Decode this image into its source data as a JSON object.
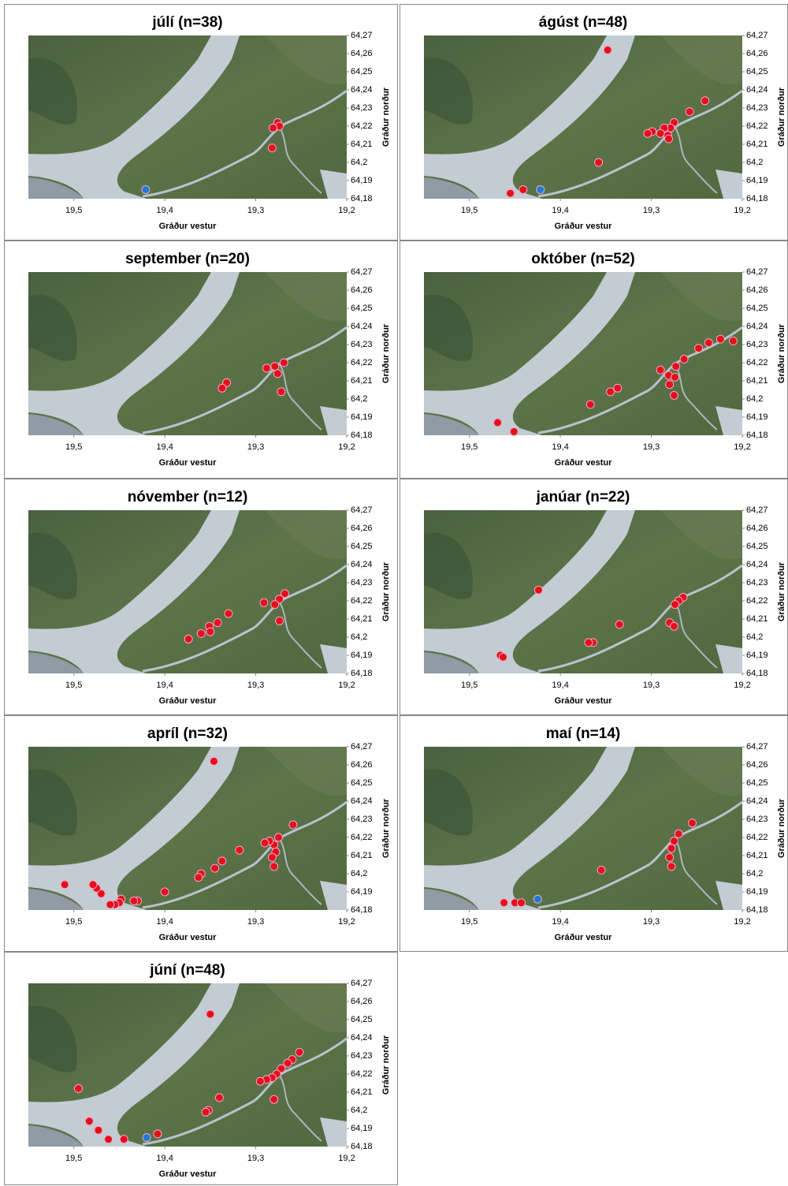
{
  "chart_data": [
    {
      "type": "scatter",
      "title": "júlí (n=38)",
      "xlabel": "Gráður vestur",
      "ylabel": "Gráður norður",
      "xlim": [
        19.55,
        19.2
      ],
      "ylim": [
        64.18,
        64.27
      ],
      "xticks": [
        {
          "value": 19.5,
          "label": "19,5"
        },
        {
          "value": 19.4,
          "label": "19,4"
        },
        {
          "value": 19.3,
          "label": "19,3"
        },
        {
          "value": 19.2,
          "label": "19,2"
        }
      ],
      "yticks": [
        {
          "value": 64.27,
          "label": "64,27"
        },
        {
          "value": 64.26,
          "label": "64,26"
        },
        {
          "value": 64.25,
          "label": "64,25"
        },
        {
          "value": 64.24,
          "label": "64,24"
        },
        {
          "value": 64.23,
          "label": "64,23"
        },
        {
          "value": 64.22,
          "label": "64,22"
        },
        {
          "value": 64.21,
          "label": "64,21"
        },
        {
          "value": 64.2,
          "label": "64,2"
        },
        {
          "value": 64.19,
          "label": "64,19"
        },
        {
          "value": 64.18,
          "label": "64,18"
        }
      ],
      "series": [
        {
          "color": "#e3101b",
          "x": [
            19.276,
            19.274,
            19.281,
            19.282
          ],
          "y": [
            64.222,
            64.22,
            64.219,
            64.208
          ]
        },
        {
          "color": "#1f7ad4",
          "x": [
            19.421
          ],
          "y": [
            64.185
          ]
        }
      ]
    },
    {
      "type": "scatter",
      "title": "ágúst (n=48)",
      "xlabel": "Gráður vestur",
      "ylabel": "Gráður norður",
      "xlim": [
        19.55,
        19.2
      ],
      "ylim": [
        64.18,
        64.27
      ],
      "xticks": [
        {
          "value": 19.5,
          "label": "19,5"
        },
        {
          "value": 19.4,
          "label": "19,4"
        },
        {
          "value": 19.3,
          "label": "19,3"
        },
        {
          "value": 19.2,
          "label": "19,2"
        }
      ],
      "yticks": [
        {
          "value": 64.27,
          "label": "64,27"
        },
        {
          "value": 64.26,
          "label": "64,26"
        },
        {
          "value": 64.25,
          "label": "64,25"
        },
        {
          "value": 64.24,
          "label": "64,24"
        },
        {
          "value": 64.23,
          "label": "64,23"
        },
        {
          "value": 64.22,
          "label": "64,22"
        },
        {
          "value": 64.21,
          "label": "64,21"
        },
        {
          "value": 64.2,
          "label": "64,2"
        },
        {
          "value": 64.19,
          "label": "64,19"
        },
        {
          "value": 64.18,
          "label": "64,18"
        }
      ],
      "series": [
        {
          "color": "#e3101b",
          "x": [
            19.348,
            19.241,
            19.258,
            19.275,
            19.279,
            19.282,
            19.281,
            19.286,
            19.29,
            19.299,
            19.304,
            19.358,
            19.455,
            19.441
          ],
          "y": [
            64.262,
            64.234,
            64.228,
            64.222,
            64.219,
            64.215,
            64.213,
            64.219,
            64.216,
            64.217,
            64.216,
            64.2,
            64.183,
            64.185
          ]
        },
        {
          "color": "#1f7ad4",
          "x": [
            19.422
          ],
          "y": [
            64.185
          ]
        }
      ]
    },
    {
      "type": "scatter",
      "title": "september (n=20)",
      "xlabel": "Gráður vestur",
      "ylabel": "Gráður norður",
      "xlim": [
        19.55,
        19.2
      ],
      "ylim": [
        64.18,
        64.27
      ],
      "xticks": [
        {
          "value": 19.5,
          "label": "19,5"
        },
        {
          "value": 19.4,
          "label": "19,4"
        },
        {
          "value": 19.3,
          "label": "19,3"
        },
        {
          "value": 19.2,
          "label": "19,2"
        }
      ],
      "yticks": [
        {
          "value": 64.27,
          "label": "64,27"
        },
        {
          "value": 64.26,
          "label": "64,26"
        },
        {
          "value": 64.25,
          "label": "64,25"
        },
        {
          "value": 64.24,
          "label": "64,24"
        },
        {
          "value": 64.23,
          "label": "64,23"
        },
        {
          "value": 64.22,
          "label": "64,22"
        },
        {
          "value": 64.21,
          "label": "64,21"
        },
        {
          "value": 64.2,
          "label": "64,2"
        },
        {
          "value": 64.19,
          "label": "64,19"
        },
        {
          "value": 64.18,
          "label": "64,18"
        }
      ],
      "series": [
        {
          "color": "#e3101b",
          "x": [
            19.269,
            19.279,
            19.288,
            19.276,
            19.332,
            19.337,
            19.272
          ],
          "y": [
            64.22,
            64.218,
            64.217,
            64.214,
            64.209,
            64.206,
            64.204
          ]
        }
      ]
    },
    {
      "type": "scatter",
      "title": "október (n=52)",
      "xlabel": "Gráður vestur",
      "ylabel": "Gráður norður",
      "xlim": [
        19.55,
        19.2
      ],
      "ylim": [
        64.18,
        64.27
      ],
      "xticks": [
        {
          "value": 19.5,
          "label": "19,5"
        },
        {
          "value": 19.4,
          "label": "19,4"
        },
        {
          "value": 19.3,
          "label": "19,3"
        },
        {
          "value": 19.2,
          "label": "19,2"
        }
      ],
      "yticks": [
        {
          "value": 64.27,
          "label": "64,27"
        },
        {
          "value": 64.26,
          "label": "64,26"
        },
        {
          "value": 64.25,
          "label": "64,25"
        },
        {
          "value": 64.24,
          "label": "64,24"
        },
        {
          "value": 64.23,
          "label": "64,23"
        },
        {
          "value": 64.22,
          "label": "64,22"
        },
        {
          "value": 64.21,
          "label": "64,21"
        },
        {
          "value": 64.2,
          "label": "64,2"
        },
        {
          "value": 64.19,
          "label": "64,19"
        },
        {
          "value": 64.18,
          "label": "64,18"
        }
      ],
      "series": [
        {
          "color": "#e3101b",
          "x": [
            19.21,
            19.224,
            19.237,
            19.248,
            19.264,
            19.273,
            19.281,
            19.29,
            19.274,
            19.28,
            19.275,
            19.337,
            19.345,
            19.367,
            19.469,
            19.451
          ],
          "y": [
            64.232,
            64.233,
            64.231,
            64.228,
            64.222,
            64.218,
            64.213,
            64.216,
            64.212,
            64.208,
            64.202,
            64.206,
            64.204,
            64.197,
            64.187,
            64.182
          ]
        }
      ]
    },
    {
      "type": "scatter",
      "title": "nóvember (n=12)",
      "xlabel": "Gráður vestur",
      "ylabel": "Gráður norður",
      "xlim": [
        19.55,
        19.2
      ],
      "ylim": [
        64.18,
        64.27
      ],
      "xticks": [
        {
          "value": 19.5,
          "label": "19,5"
        },
        {
          "value": 19.4,
          "label": "19,4"
        },
        {
          "value": 19.3,
          "label": "19,3"
        },
        {
          "value": 19.2,
          "label": "19,2"
        }
      ],
      "yticks": [
        {
          "value": 64.27,
          "label": "64,27"
        },
        {
          "value": 64.26,
          "label": "64,26"
        },
        {
          "value": 64.25,
          "label": "64,25"
        },
        {
          "value": 64.24,
          "label": "64,24"
        },
        {
          "value": 64.23,
          "label": "64,23"
        },
        {
          "value": 64.22,
          "label": "64,22"
        },
        {
          "value": 64.21,
          "label": "64,21"
        },
        {
          "value": 64.2,
          "label": "64,2"
        },
        {
          "value": 64.19,
          "label": "64,19"
        },
        {
          "value": 64.18,
          "label": "64,18"
        }
      ],
      "series": [
        {
          "color": "#e3101b",
          "x": [
            19.268,
            19.274,
            19.279,
            19.291,
            19.274,
            19.33,
            19.342,
            19.351,
            19.35,
            19.36,
            19.374
          ],
          "y": [
            64.224,
            64.221,
            64.218,
            64.219,
            64.209,
            64.213,
            64.208,
            64.206,
            64.203,
            64.202,
            64.199
          ]
        }
      ]
    },
    {
      "type": "scatter",
      "title": "janúar (n=22)",
      "xlabel": "Gráður vestur",
      "ylabel": "Gráður norður",
      "xlim": [
        19.55,
        19.2
      ],
      "ylim": [
        64.18,
        64.27
      ],
      "xticks": [
        {
          "value": 19.5,
          "label": "19,5"
        },
        {
          "value": 19.4,
          "label": "19,4"
        },
        {
          "value": 19.3,
          "label": "19,3"
        },
        {
          "value": 19.2,
          "label": "19,2"
        }
      ],
      "yticks": [
        {
          "value": 64.27,
          "label": "64,27"
        },
        {
          "value": 64.26,
          "label": "64,26"
        },
        {
          "value": 64.25,
          "label": "64,25"
        },
        {
          "value": 64.24,
          "label": "64,24"
        },
        {
          "value": 64.23,
          "label": "64,23"
        },
        {
          "value": 64.22,
          "label": "64,22"
        },
        {
          "value": 64.21,
          "label": "64,21"
        },
        {
          "value": 64.2,
          "label": "64,2"
        },
        {
          "value": 64.19,
          "label": "64,19"
        },
        {
          "value": 64.18,
          "label": "64,18"
        }
      ],
      "series": [
        {
          "color": "#e3101b",
          "x": [
            19.424,
            19.265,
            19.27,
            19.274,
            19.28,
            19.275,
            19.335,
            19.364,
            19.369,
            19.466,
            19.463
          ],
          "y": [
            64.226,
            64.222,
            64.22,
            64.218,
            64.208,
            64.206,
            64.207,
            64.197,
            64.197,
            64.19,
            64.189
          ]
        }
      ]
    },
    {
      "type": "scatter",
      "title": "apríl (n=32)",
      "xlabel": "Gráður vestur",
      "ylabel": "Gráður norður",
      "xlim": [
        19.55,
        19.2
      ],
      "ylim": [
        64.18,
        64.27
      ],
      "xticks": [
        {
          "value": 19.5,
          "label": "19,5"
        },
        {
          "value": 19.4,
          "label": "19,4"
        },
        {
          "value": 19.3,
          "label": "19,3"
        },
        {
          "value": 19.2,
          "label": "19,2"
        }
      ],
      "yticks": [
        {
          "value": 64.27,
          "label": "64,27"
        },
        {
          "value": 64.26,
          "label": "64,26"
        },
        {
          "value": 64.25,
          "label": "64,25"
        },
        {
          "value": 64.24,
          "label": "64,24"
        },
        {
          "value": 64.23,
          "label": "64,23"
        },
        {
          "value": 64.22,
          "label": "64,22"
        },
        {
          "value": 64.21,
          "label": "64,21"
        },
        {
          "value": 64.2,
          "label": "64,2"
        },
        {
          "value": 64.19,
          "label": "64,19"
        },
        {
          "value": 64.18,
          "label": "64,18"
        }
      ],
      "series": [
        {
          "color": "#e3101b",
          "x": [
            19.346,
            19.259,
            19.275,
            19.28,
            19.285,
            19.29,
            19.278,
            19.282,
            19.28,
            19.318,
            19.337,
            19.345,
            19.36,
            19.363,
            19.4,
            19.43,
            19.434,
            19.448,
            19.45,
            19.455,
            19.46,
            19.47,
            19.475,
            19.479,
            19.51
          ],
          "y": [
            64.262,
            64.227,
            64.22,
            64.216,
            64.218,
            64.217,
            64.212,
            64.209,
            64.204,
            64.213,
            64.207,
            64.203,
            64.2,
            64.198,
            64.19,
            64.185,
            64.185,
            64.186,
            64.184,
            64.183,
            64.183,
            64.189,
            64.192,
            64.194,
            64.194
          ]
        }
      ]
    },
    {
      "type": "scatter",
      "title": "maí (n=14)",
      "xlabel": "Gráður vestur",
      "ylabel": "Gráður norður",
      "xlim": [
        19.55,
        19.2
      ],
      "ylim": [
        64.18,
        64.27
      ],
      "xticks": [
        {
          "value": 19.5,
          "label": "19,5"
        },
        {
          "value": 19.4,
          "label": "19,4"
        },
        {
          "value": 19.3,
          "label": "19,3"
        },
        {
          "value": 19.2,
          "label": "19,2"
        }
      ],
      "yticks": [
        {
          "value": 64.27,
          "label": "64,27"
        },
        {
          "value": 64.26,
          "label": "64,26"
        },
        {
          "value": 64.25,
          "label": "64,25"
        },
        {
          "value": 64.24,
          "label": "64,24"
        },
        {
          "value": 64.23,
          "label": "64,23"
        },
        {
          "value": 64.22,
          "label": "64,22"
        },
        {
          "value": 64.21,
          "label": "64,21"
        },
        {
          "value": 64.2,
          "label": "64,2"
        },
        {
          "value": 64.19,
          "label": "64,19"
        },
        {
          "value": 64.18,
          "label": "64,18"
        }
      ],
      "series": [
        {
          "color": "#e3101b",
          "x": [
            19.255,
            19.27,
            19.275,
            19.278,
            19.28,
            19.278,
            19.355,
            19.462,
            19.45,
            19.443
          ],
          "y": [
            64.228,
            64.222,
            64.218,
            64.214,
            64.209,
            64.204,
            64.202,
            64.184,
            64.184,
            64.184
          ]
        },
        {
          "color": "#1f7ad4",
          "x": [
            19.425
          ],
          "y": [
            64.186
          ]
        }
      ]
    },
    {
      "type": "scatter",
      "title": "júní (n=48)",
      "xlabel": "Gráður vestur",
      "ylabel": "Gráður norður",
      "xlim": [
        19.55,
        19.2
      ],
      "ylim": [
        64.18,
        64.27
      ],
      "xticks": [
        {
          "value": 19.5,
          "label": "19,5"
        },
        {
          "value": 19.4,
          "label": "19,4"
        },
        {
          "value": 19.3,
          "label": "19,3"
        },
        {
          "value": 19.2,
          "label": "19,2"
        }
      ],
      "yticks": [
        {
          "value": 64.27,
          "label": "64,27"
        },
        {
          "value": 64.26,
          "label": "64,26"
        },
        {
          "value": 64.25,
          "label": "64,25"
        },
        {
          "value": 64.24,
          "label": "64,24"
        },
        {
          "value": 64.23,
          "label": "64,23"
        },
        {
          "value": 64.22,
          "label": "64,22"
        },
        {
          "value": 64.21,
          "label": "64,21"
        },
        {
          "value": 64.2,
          "label": "64,2"
        },
        {
          "value": 64.19,
          "label": "64,19"
        },
        {
          "value": 64.18,
          "label": "64,18"
        }
      ],
      "series": [
        {
          "color": "#e3101b",
          "x": [
            19.35,
            19.252,
            19.26,
            19.265,
            19.272,
            19.277,
            19.282,
            19.288,
            19.295,
            19.28,
            19.34,
            19.352,
            19.355,
            19.495,
            19.483,
            19.473,
            19.462,
            19.445,
            19.408
          ],
          "y": [
            64.253,
            64.232,
            64.228,
            64.226,
            64.223,
            64.22,
            64.218,
            64.217,
            64.216,
            64.206,
            64.207,
            64.2,
            64.199,
            64.212,
            64.194,
            64.189,
            64.184,
            64.184,
            64.187
          ]
        },
        {
          "color": "#1f7ad4",
          "x": [
            19.42
          ],
          "y": [
            64.185
          ]
        }
      ]
    }
  ]
}
